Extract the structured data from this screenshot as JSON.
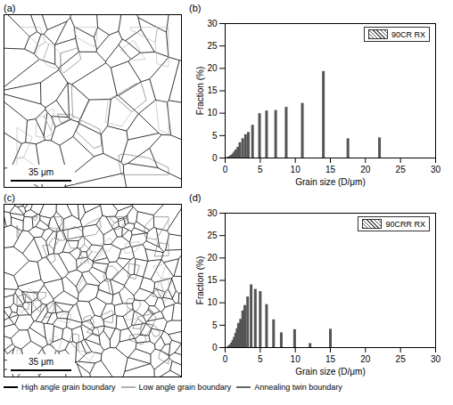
{
  "chart_data": [
    {
      "panel": "(b)",
      "type": "bar",
      "x": [
        0.3,
        0.5,
        0.7,
        0.9,
        1.1,
        1.3,
        1.5,
        1.8,
        2.1,
        2.5,
        2.9,
        3.3,
        3.9,
        4.9,
        5.9,
        7.2,
        8.7,
        11,
        14,
        17.5,
        22
      ],
      "series": [
        {
          "name": "90CR RX",
          "color": "#555555",
          "values": [
            0.1,
            0.2,
            0.4,
            0.6,
            0.9,
            1.3,
            1.8,
            2.4,
            3.4,
            4.3,
            5.2,
            5.7,
            7.3,
            9.9,
            10.5,
            10.6,
            11.3,
            12.2,
            19.3,
            4.3,
            4.5
          ]
        }
      ],
      "x_label": "Grain size (D/μm)",
      "y_label": "Fraction (%)",
      "xlim": [
        0,
        30
      ],
      "xticks": [
        0,
        5,
        10,
        15,
        20,
        25,
        30
      ],
      "ylim": [
        0,
        30
      ],
      "yticks": [
        0,
        5,
        10,
        15,
        20,
        25,
        30
      ],
      "legend": "top-right",
      "grid": false
    },
    {
      "panel": "(d)",
      "type": "bar",
      "x": [
        0.3,
        0.5,
        0.7,
        0.9,
        1.1,
        1.3,
        1.5,
        1.7,
        1.9,
        2.2,
        2.5,
        2.8,
        3.2,
        3.7,
        4.3,
        5,
        5.9,
        6.9,
        8,
        9.9,
        12.1,
        15
      ],
      "series": [
        {
          "name": "90CRR RX",
          "color": "#555555",
          "values": [
            0.1,
            0.3,
            0.6,
            1,
            1.6,
            2.3,
            3.2,
            4.2,
            5.4,
            6.3,
            8.2,
            9.4,
            11.3,
            14,
            13,
            12.5,
            9.6,
            6.2,
            3.3,
            4,
            0.9,
            4.1
          ]
        }
      ],
      "x_label": "Grain size (D/μm)",
      "y_label": "Fraction (%)",
      "xlim": [
        0,
        30
      ],
      "xticks": [
        0,
        5,
        10,
        15,
        20,
        25,
        30
      ],
      "ylim": [
        0,
        30
      ],
      "yticks": [
        0,
        5,
        10,
        15,
        20,
        25,
        30
      ],
      "legend": "top-right",
      "grid": false
    }
  ],
  "maps": [
    {
      "panel": "(a)",
      "scale_bar": "35 μm"
    },
    {
      "panel": "(c)",
      "scale_bar": "35 μm"
    }
  ],
  "boundary_legend": [
    {
      "name": "High angle grain boundary",
      "color": "#000000"
    },
    {
      "name": "Low angle grain boundary",
      "color": "#b0b0b0"
    },
    {
      "name": "Annealing twin boundary",
      "color": "#666666"
    }
  ]
}
